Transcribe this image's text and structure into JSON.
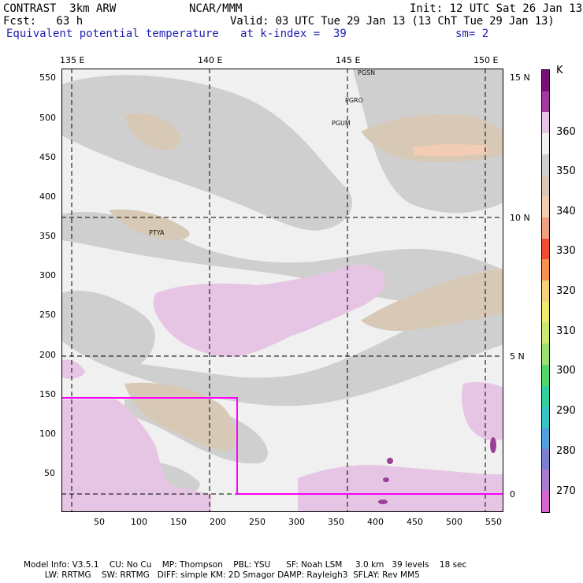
{
  "header": {
    "left_line1": "CONTRAST  3km ARW",
    "center_line1": "NCAR/MMM",
    "right_line1": "Init: 12 UTC Sat 26 Jan 13",
    "left_line2": "Fcst:   63 h",
    "right_line2": "Valid: 03 UTC Tue 29 Jan 13 (13 ChT Tue 29 Jan 13)",
    "field_name": "Equivalent potential temperature",
    "level": "at k-index =  39",
    "smoothing": "sm= 2"
  },
  "map": {
    "lon_labels": [
      "135 E",
      "140 E",
      "145 E",
      "150 E"
    ],
    "lat_labels": [
      "15 N",
      "10 N",
      "5 N",
      "0"
    ],
    "x_ticks": [
      "50",
      "100",
      "150",
      "200",
      "250",
      "300",
      "350",
      "400",
      "450",
      "500",
      "550"
    ],
    "y_ticks": [
      "550",
      "500",
      "450",
      "400",
      "350",
      "300",
      "250",
      "200",
      "150",
      "100",
      "50"
    ],
    "stations": [
      "PGSN",
      "PGRO",
      "PGUM",
      "PTYA"
    ],
    "colors": {
      "background": "#f0f0f0",
      "gray350": "#cfcfcf",
      "tan345": "#d8c8b6",
      "pink360": "#e5c5e3",
      "purple": "#9b3f98",
      "subdomain_box": "#ff00ff"
    }
  },
  "colorbar": {
    "unit": "K",
    "labels": [
      "360",
      "350",
      "340",
      "330",
      "320",
      "310",
      "300",
      "290",
      "280",
      "270"
    ],
    "colors": [
      "#7a0f78",
      "#a43aa0",
      "#e5c5e3",
      "#f0f0f0",
      "#cfcfcf",
      "#d8c8b6",
      "#f2cdb4",
      "#f0a080",
      "#f24b34",
      "#f59050",
      "#f7d07c",
      "#eeed70",
      "#cfe872",
      "#9ce070",
      "#52d86a",
      "#34cf9f",
      "#37c4c4",
      "#4fa0dc",
      "#7d7fd4",
      "#a97bcf",
      "#d767cf"
    ]
  },
  "footer": {
    "line1": "Model Info: V3.5.1    CU: No Cu    MP: Thompson    PBL: YSU      SF: Noah LSM     3.0 km   39 levels    18 sec",
    "line2": "        LW: RRTMG    SW: RRTMG   DIFF: simple KM: 2D Smagor DAMP: Rayleigh3  SFLAY: Rev MM5"
  }
}
